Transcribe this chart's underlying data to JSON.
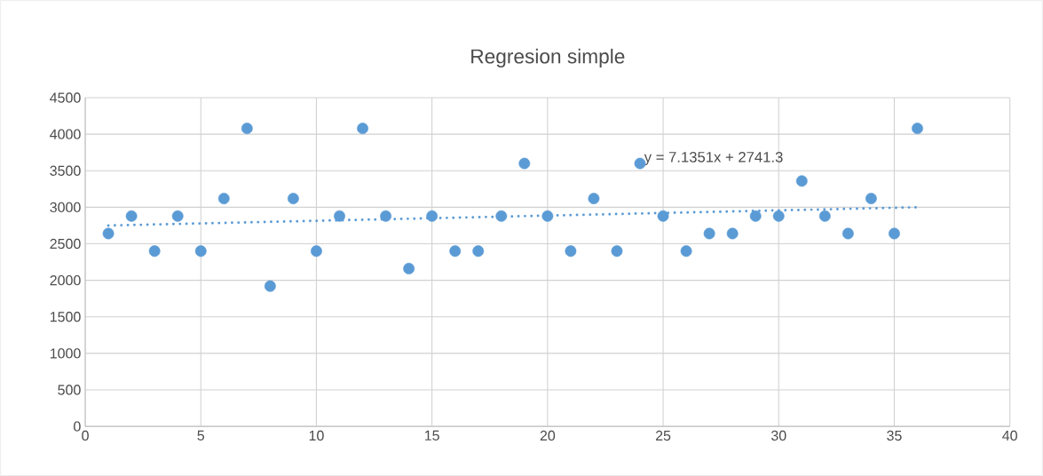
{
  "chart_data": {
    "type": "scatter",
    "title": "Regresion simple",
    "series": [
      {
        "color": "#5b9bd5",
        "marker": "circle",
        "x": [
          1,
          2,
          3,
          4,
          5,
          6,
          7,
          8,
          9,
          10,
          11,
          12,
          13,
          14,
          15,
          16,
          17,
          18,
          19,
          20,
          21,
          22,
          23,
          24,
          25,
          26,
          27,
          28,
          29,
          30,
          31,
          32,
          33,
          34,
          35,
          36
        ],
        "values": [
          2640,
          2880,
          2400,
          2880,
          2400,
          3120,
          4080,
          1920,
          3120,
          2400,
          2880,
          4080,
          2880,
          2160,
          2880,
          2400,
          2400,
          2880,
          3600,
          2880,
          2400,
          3120,
          2400,
          3600,
          2880,
          2400,
          2640,
          2640,
          2880,
          2880,
          3360,
          2880,
          2640,
          3120,
          2640,
          4080
        ]
      },
      {
        "type": "line",
        "color": "#5b9bd5",
        "marker": "none",
        "line_style": "dotted",
        "x": [
          1,
          36
        ],
        "values": [
          2750,
          3000
        ]
      }
    ],
    "annotations": [
      "y = 7.1351x + 2741.3"
    ],
    "xlim": [
      0,
      40
    ],
    "xticks": [
      0,
      5,
      10,
      15,
      20,
      25,
      30,
      35,
      40
    ],
    "ylim": [
      0,
      4500
    ],
    "yticks": [
      0,
      500,
      1000,
      1500,
      2000,
      2500,
      3000,
      3500,
      4000,
      4500
    ],
    "grid": true
  }
}
